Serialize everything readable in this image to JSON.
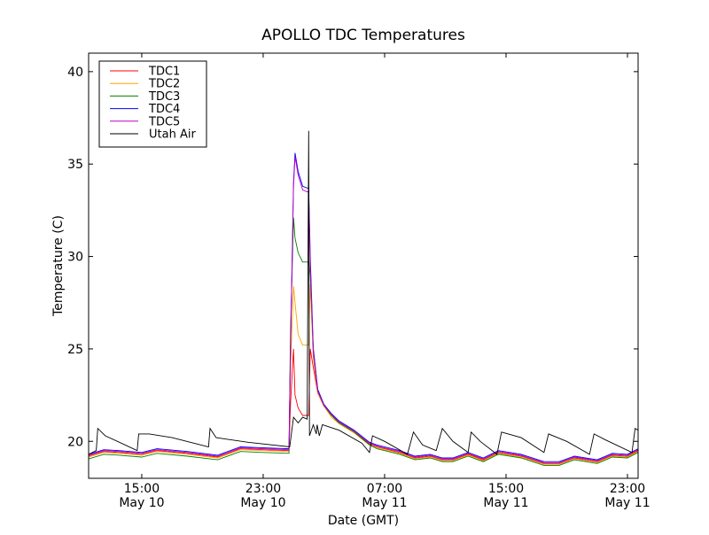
{
  "chart_data": {
    "type": "line",
    "title": "APOLLO TDC Temperatures",
    "xlabel": "Date (GMT)",
    "ylabel": "Temperature (C)",
    "x_units": "hours since May 10 00:00 GMT",
    "xlim": [
      11.5,
      47.7
    ],
    "ylim": [
      18,
      41
    ],
    "grid": false,
    "legend_position": "top-left",
    "yticks": [
      20,
      25,
      30,
      35,
      40
    ],
    "xticks": [
      {
        "value": 15,
        "time": "15:00",
        "date": "May 10"
      },
      {
        "value": 23,
        "time": "23:00",
        "date": "May 10"
      },
      {
        "value": 31,
        "time": "07:00",
        "date": "May 11"
      },
      {
        "value": 39,
        "time": "15:00",
        "date": "May 11"
      },
      {
        "value": 47,
        "time": "23:00",
        "date": "May 11"
      }
    ],
    "x": [
      11.5,
      12.5,
      13.5,
      15,
      16,
      18,
      20,
      21.5,
      23,
      24.7,
      24.8,
      25.0,
      25.1,
      25.3,
      25.6,
      25.9,
      26.0,
      26.1,
      26.3,
      26.6,
      27,
      27.5,
      28,
      29,
      30,
      30.5,
      31,
      32,
      33,
      34,
      34.8,
      35.5,
      36.5,
      37.5,
      38.5,
      40,
      41.5,
      42.5,
      43.5,
      45,
      46,
      47,
      47.7
    ],
    "series": [
      {
        "name": "TDC1",
        "color": "#ff0000",
        "y": [
          19.2,
          19.45,
          19.4,
          19.3,
          19.5,
          19.35,
          19.15,
          19.6,
          19.55,
          19.5,
          22,
          25.0,
          22.5,
          21.8,
          21.4,
          21.4,
          21.4,
          25,
          24,
          22.6,
          21.9,
          21.4,
          21.0,
          20.5,
          19.85,
          19.7,
          19.6,
          19.4,
          19.1,
          19.2,
          19.0,
          19.0,
          19.3,
          19.0,
          19.4,
          19.2,
          18.8,
          18.8,
          19.1,
          18.9,
          19.25,
          19.2,
          19.5
        ]
      },
      {
        "name": "TDC2",
        "color": "#ffa500",
        "y": [
          19.15,
          19.4,
          19.35,
          19.25,
          19.45,
          19.3,
          19.1,
          19.55,
          19.5,
          19.45,
          24,
          28.4,
          27.5,
          25.8,
          25.2,
          25.2,
          25.2,
          28.5,
          24.5,
          22.6,
          21.9,
          21.3,
          20.95,
          20.45,
          19.8,
          19.65,
          19.55,
          19.35,
          19.05,
          19.15,
          18.95,
          18.95,
          19.25,
          18.95,
          19.35,
          19.15,
          18.75,
          18.75,
          19.05,
          18.85,
          19.2,
          19.15,
          19.45
        ]
      },
      {
        "name": "TDC3",
        "color": "#008000",
        "y": [
          19.05,
          19.3,
          19.25,
          19.15,
          19.35,
          19.2,
          19.0,
          19.45,
          19.4,
          19.35,
          26,
          32.1,
          31.0,
          30.2,
          29.7,
          29.7,
          29.7,
          29,
          25,
          22.7,
          21.95,
          21.4,
          21.0,
          20.5,
          19.8,
          19.6,
          19.5,
          19.3,
          19.0,
          19.1,
          18.9,
          18.9,
          19.2,
          18.9,
          19.3,
          19.1,
          18.7,
          18.7,
          19.0,
          18.8,
          19.15,
          19.1,
          19.4
        ]
      },
      {
        "name": "TDC4",
        "color": "#0000ff",
        "y": [
          19.3,
          19.55,
          19.5,
          19.4,
          19.6,
          19.45,
          19.25,
          19.7,
          19.65,
          19.6,
          25,
          34.0,
          35.6,
          34.6,
          33.8,
          33.7,
          33.7,
          30,
          25,
          22.8,
          22.0,
          21.5,
          21.1,
          20.6,
          19.95,
          19.8,
          19.7,
          19.5,
          19.2,
          19.3,
          19.1,
          19.1,
          19.4,
          19.1,
          19.5,
          19.3,
          18.9,
          18.9,
          19.2,
          19.0,
          19.35,
          19.3,
          19.6
        ]
      },
      {
        "name": "TDC5",
        "color": "#bf00bf",
        "y": [
          19.25,
          19.5,
          19.45,
          19.35,
          19.55,
          19.4,
          19.2,
          19.65,
          19.6,
          19.55,
          25,
          33.8,
          35.4,
          34.4,
          33.6,
          33.5,
          33.5,
          29.5,
          24.8,
          22.7,
          21.95,
          21.45,
          21.05,
          20.55,
          19.9,
          19.75,
          19.65,
          19.45,
          19.15,
          19.25,
          19.05,
          19.05,
          19.35,
          19.05,
          19.45,
          19.25,
          18.85,
          18.85,
          19.15,
          18.95,
          19.3,
          19.25,
          19.55
        ]
      },
      {
        "name": "Utah Air",
        "color": "#000000",
        "points": [
          [
            11.5,
            19.3
          ],
          [
            12.0,
            19.5
          ],
          [
            12.1,
            20.7
          ],
          [
            12.6,
            20.3
          ],
          [
            14.7,
            19.5
          ],
          [
            14.8,
            20.4
          ],
          [
            15.5,
            20.4
          ],
          [
            17,
            20.2
          ],
          [
            19.4,
            19.7
          ],
          [
            19.5,
            20.7
          ],
          [
            19.9,
            20.2
          ],
          [
            22,
            19.95
          ],
          [
            24.75,
            19.7
          ],
          [
            25.0,
            21.3
          ],
          [
            25.3,
            21.0
          ],
          [
            25.6,
            21.3
          ],
          [
            25.9,
            21.2
          ],
          [
            26.0,
            36.8
          ],
          [
            26.05,
            20.3
          ],
          [
            26.3,
            20.9
          ],
          [
            26.5,
            20.4
          ],
          [
            26.55,
            20.9
          ],
          [
            26.7,
            20.3
          ],
          [
            26.9,
            20.9
          ],
          [
            28,
            20.6
          ],
          [
            29.5,
            19.9
          ],
          [
            30.0,
            19.4
          ],
          [
            30.2,
            20.3
          ],
          [
            31,
            20.0
          ],
          [
            32.5,
            19.3
          ],
          [
            32.9,
            20.5
          ],
          [
            33.5,
            19.8
          ],
          [
            34.4,
            19.5
          ],
          [
            34.8,
            20.7
          ],
          [
            35.5,
            20.0
          ],
          [
            36.5,
            19.4
          ],
          [
            36.7,
            20.5
          ],
          [
            37.3,
            20.0
          ],
          [
            38.4,
            19.3
          ],
          [
            38.7,
            20.5
          ],
          [
            40,
            20.2
          ],
          [
            41.5,
            19.4
          ],
          [
            41.8,
            20.4
          ],
          [
            43,
            20.0
          ],
          [
            44.5,
            19.3
          ],
          [
            44.8,
            20.4
          ],
          [
            45.5,
            20.1
          ],
          [
            47.3,
            19.4
          ],
          [
            47.5,
            20.7
          ],
          [
            47.7,
            20.6
          ]
        ]
      }
    ]
  }
}
